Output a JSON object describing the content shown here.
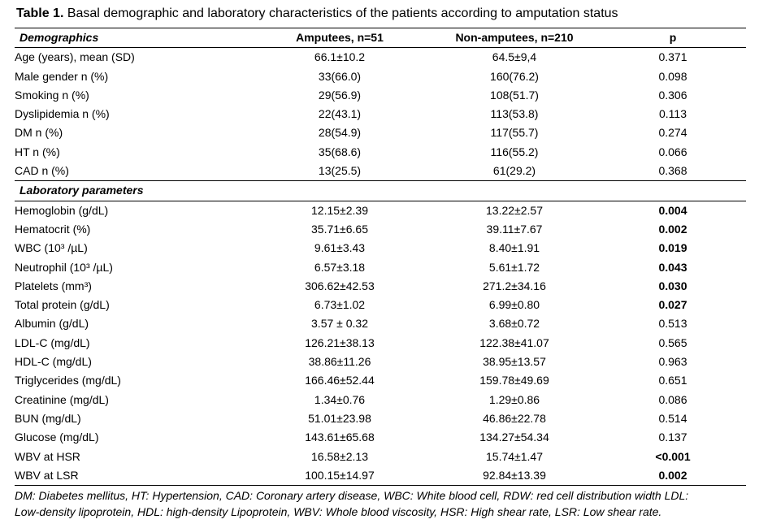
{
  "caption": {
    "lead": "Table 1.",
    "text": " Basal demographic and laboratory characteristics of the patients according to amputation status"
  },
  "header": {
    "col1": "Demographics",
    "col2": "Amputees, n=51",
    "col3": "Non-amputees, n=210",
    "col4": "p"
  },
  "demographics": [
    {
      "label": "Age (years), mean (SD)",
      "amputees": "66.1±10.2",
      "non_amputees": "64.5±9,4",
      "p": "0.371",
      "p_bold": false
    },
    {
      "label": "Male gender n (%)",
      "amputees": "33(66.0)",
      "non_amputees": "160(76.2)",
      "p": "0.098",
      "p_bold": false
    },
    {
      "label": "Smoking n (%)",
      "amputees": "29(56.9)",
      "non_amputees": "108(51.7)",
      "p": "0.306",
      "p_bold": false
    },
    {
      "label": "Dyslipidemia n (%)",
      "amputees": "22(43.1)",
      "non_amputees": "113(53.8)",
      "p": "0.113",
      "p_bold": false
    },
    {
      "label": "DM n (%)",
      "amputees": "28(54.9)",
      "non_amputees": "117(55.7)",
      "p": "0.274",
      "p_bold": false
    },
    {
      "label": "HT n (%)",
      "amputees": "35(68.6)",
      "non_amputees": "116(55.2)",
      "p": "0.066",
      "p_bold": false
    },
    {
      "label": "CAD n (%)",
      "amputees": "13(25.5)",
      "non_amputees": "61(29.2)",
      "p": "0.368",
      "p_bold": false
    }
  ],
  "lab_section_title": "Laboratory parameters",
  "laboratory": [
    {
      "label": "Hemoglobin (g/dL)",
      "amputees": "12.15±2.39",
      "non_amputees": "13.22±2.57",
      "p": "0.004",
      "p_bold": true
    },
    {
      "label": "Hematocrit (%)",
      "amputees": "35.71±6.65",
      "non_amputees": "39.11±7.67",
      "p": "0.002",
      "p_bold": true
    },
    {
      "label": "WBC (10³ /µL)",
      "amputees": "9.61±3.43",
      "non_amputees": "8.40±1.91",
      "p": "0.019",
      "p_bold": true
    },
    {
      "label": "Neutrophil (10³ /µL)",
      "amputees": "6.57±3.18",
      "non_amputees": "5.61±1.72",
      "p": "0.043",
      "p_bold": true
    },
    {
      "label": "Platelets (mm³)",
      "amputees": "306.62±42.53",
      "non_amputees": "271.2±34.16",
      "p": "0.030",
      "p_bold": true
    },
    {
      "label": "Total protein (g/dL)",
      "amputees": "6.73±1.02",
      "non_amputees": "6.99±0.80",
      "p": "0.027",
      "p_bold": true
    },
    {
      "label": "Albumin (g/dL)",
      "amputees": "3.57 ± 0.32",
      "non_amputees": "3.68±0.72",
      "p": "0.513",
      "p_bold": false
    },
    {
      "label": "LDL-C (mg/dL)",
      "amputees": "126.21±38.13",
      "non_amputees": "122.38±41.07",
      "p": "0.565",
      "p_bold": false
    },
    {
      "label": "HDL-C (mg/dL)",
      "amputees": "38.86±11.26",
      "non_amputees": "38.95±13.57",
      "p": "0.963",
      "p_bold": false
    },
    {
      "label": "Triglycerides (mg/dL)",
      "amputees": "166.46±52.44",
      "non_amputees": "159.78±49.69",
      "p": "0.651",
      "p_bold": false
    },
    {
      "label": "Creatinine (mg/dL)",
      "amputees": "1.34±0.76",
      "non_amputees": "1.29±0.86",
      "p": "0.086",
      "p_bold": false
    },
    {
      "label": "BUN (mg/dL)",
      "amputees": "51.01±23.98",
      "non_amputees": "46.86±22.78",
      "p": "0.514",
      "p_bold": false
    },
    {
      "label": "Glucose (mg/dL)",
      "amputees": "143.61±65.68",
      "non_amputees": "134.27±54.34",
      "p": "0.137",
      "p_bold": false
    },
    {
      "label": "WBV at HSR",
      "amputees": "16.58±2.13",
      "non_amputees": "15.74±1.47",
      "p": "<0.001",
      "p_bold": true
    },
    {
      "label": "WBV at LSR",
      "amputees": "100.15±14.97",
      "non_amputees": "92.84±13.39",
      "p": "0.002",
      "p_bold": true
    }
  ],
  "footnote": {
    "line1": "DM: Diabetes mellitus, HT: Hypertension, CAD: Coronary artery disease, WBC: White blood cell, RDW: red cell distribution width LDL:",
    "line2": "Low-density lipoprotein, HDL: high-density Lipoprotein, WBV: Whole blood viscosity, HSR: High shear rate, LSR: Low shear rate."
  }
}
